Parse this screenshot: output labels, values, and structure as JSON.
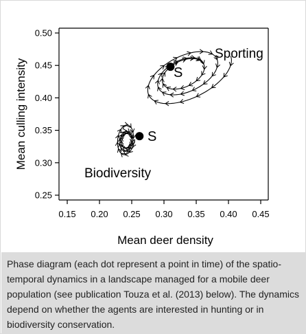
{
  "chart_data": {
    "type": "scatter",
    "xlabel": "Mean deer density",
    "ylabel": "Mean culling intensity",
    "xlim": [
      0.15,
      0.45
    ],
    "ylim": [
      0.25,
      0.5
    ],
    "xticks": [
      "0.15",
      "0.20",
      "0.25",
      "0.30",
      "0.35",
      "0.40",
      "0.45"
    ],
    "yticks": [
      "0.25",
      "0.30",
      "0.35",
      "0.40",
      "0.45",
      "0.50"
    ],
    "grid": false,
    "series": [
      {
        "name": "Sporting",
        "steady_state_label": "S",
        "steady_state": {
          "x": 0.31,
          "y": 0.448
        },
        "trajectory_style": "clockwise elliptical spiral with arrowheads",
        "spiral_loops": [
          {
            "center": [
              0.336,
              0.432
            ],
            "x_radius": 0.075,
            "y_radius": 0.036
          },
          {
            "center": [
              0.333,
              0.435
            ],
            "x_radius": 0.055,
            "y_radius": 0.029
          },
          {
            "center": [
              0.33,
              0.437
            ],
            "x_radius": 0.035,
            "y_radius": 0.02
          }
        ]
      },
      {
        "name": "Biodiversity",
        "steady_state_label": "S",
        "steady_state": {
          "x": 0.262,
          "y": 0.341
        },
        "trajectory_style": "tight elliptical spiral with arrowheads",
        "spiral_loops": [
          {
            "center": [
              0.241,
              0.338
            ],
            "x_radius": 0.014,
            "y_radius": 0.027
          },
          {
            "center": [
              0.241,
              0.336
            ],
            "x_radius": 0.011,
            "y_radius": 0.02
          },
          {
            "center": [
              0.242,
              0.334
            ],
            "x_radius": 0.008,
            "y_radius": 0.012
          }
        ]
      }
    ]
  },
  "caption": "Phase diagram (each dot represent a point in time) of the spatio-temporal dynamics in a landscape managed for a mobile deer population (see publication Touza et al. (2013) below). The dynamics depend on whether the agents are interested in hunting or in biodiversity conservation.",
  "colors": {
    "ink": "#000000",
    "caption_background": "#dcdcdc",
    "caption_text": "#222222"
  }
}
